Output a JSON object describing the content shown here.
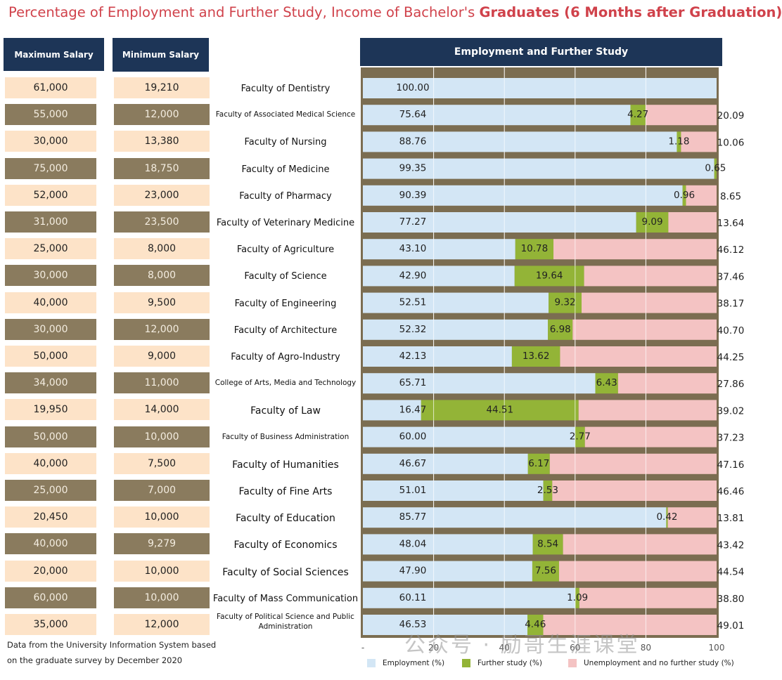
{
  "chart_data": {
    "type": "bar",
    "orientation": "horizontal",
    "stacked": true,
    "title_main": "Percentage of Employment and Further Study, Income of Bachelor's ",
    "title_bold": "Graduates (6 Months after Graduation)",
    "chart_header": "Employment and Further Study",
    "max_salary_header": "Maximum Salary",
    "min_salary_header": "Minimum Salary",
    "xlim": [
      0,
      100
    ],
    "x_ticks": [
      "-",
      "20",
      "40",
      "60",
      "80",
      "100"
    ],
    "categories": [
      "Faculty of Dentistry",
      "Faculty of Associated Medical Science",
      "Faculty of Nursing",
      "Faculty of Medicine",
      "Faculty of Pharmacy",
      "Faculty of Veterinary Medicine",
      "Faculty of Agriculture",
      "Faculty of Science",
      "Faculty of Engineering",
      "Faculty of Architecture",
      "Faculty of Agro-Industry",
      "College of Arts, Media and Technology",
      "Faculty of Law",
      "Faculty of Business Administration",
      "Faculty of Humanities",
      "Faculty of Fine Arts",
      "Faculty of Education",
      "Faculty of Economics",
      "Faculty of Social Sciences",
      "Faculty of Mass Communication",
      "Faculty of Political Science and Public Administration"
    ],
    "max_salary": [
      "61,000",
      "55,000",
      "30,000",
      "75,000",
      "52,000",
      "31,000",
      "25,000",
      "30,000",
      "40,000",
      "30,000",
      "50,000",
      "34,000",
      "19,950",
      "50,000",
      "40,000",
      "25,000",
      "20,450",
      "40,000",
      "20,000",
      "60,000",
      "35,000"
    ],
    "min_salary": [
      "19,210",
      "12,000",
      "13,380",
      "18,750",
      "23,000",
      "23,500",
      "8,000",
      "8,000",
      "9,500",
      "12,000",
      "9,000",
      "11,000",
      "14,000",
      "10,000",
      "7,500",
      "7,000",
      "10,000",
      "9,279",
      "10,000",
      "10,000",
      "12,000"
    ],
    "series": [
      {
        "name": "Employment (%)",
        "color": "#d3e6f5",
        "values": [
          100.0,
          75.64,
          88.76,
          99.35,
          90.39,
          77.27,
          43.1,
          42.9,
          52.51,
          52.32,
          42.13,
          65.71,
          16.47,
          60.0,
          46.67,
          51.01,
          85.77,
          48.04,
          47.9,
          60.11,
          46.53
        ],
        "labels": [
          "100.00",
          "75.64",
          "88.76",
          "99.35",
          "90.39",
          "77.27",
          "43.10",
          "42.90",
          "52.51",
          "52.32",
          "42.13",
          "65.71",
          "16.47",
          "60.00",
          "46.67",
          "51.01",
          "85.77",
          "48.04",
          "47.90",
          "60.11",
          "46.53"
        ]
      },
      {
        "name": "Further study (%)",
        "color": "#93b437",
        "values": [
          0,
          4.27,
          1.18,
          0.65,
          0.96,
          9.09,
          10.78,
          19.64,
          9.32,
          6.98,
          13.62,
          6.43,
          44.51,
          2.77,
          6.17,
          2.53,
          0.42,
          8.54,
          7.56,
          1.09,
          4.46
        ],
        "labels": [
          "",
          "4.27",
          "1.18",
          "0.65",
          "0.96",
          "9.09",
          "10.78",
          "19.64",
          "9.32",
          "6.98",
          "13.62",
          "6.43",
          "44.51",
          "2.77",
          "6.17",
          "2.53",
          "0.42",
          "8.54",
          "7.56",
          "1.09",
          "4.46"
        ]
      },
      {
        "name": "Unemployment and no further study (%)",
        "color": "#f4c3c3",
        "values": [
          0,
          20.09,
          10.06,
          0,
          8.65,
          13.64,
          46.12,
          37.46,
          38.17,
          40.7,
          44.25,
          27.86,
          39.02,
          37.23,
          47.16,
          46.46,
          13.81,
          43.42,
          44.54,
          38.8,
          49.01
        ],
        "labels": [
          "",
          "20.09",
          "10.06",
          "",
          "8.65",
          "13.64",
          "46.12",
          "37.46",
          "38.17",
          "40.70",
          "44.25",
          "27.86",
          "39.02",
          "37.23",
          "47.16",
          "46.46",
          "13.81",
          "43.42",
          "44.54",
          "38.80",
          "49.01"
        ]
      }
    ],
    "footnote_lines": [
      "Data from the University Information System based",
      "on the graduate survey by December 2020"
    ]
  },
  "watermark": "公众号 · 励哥生涯课堂",
  "colors": {
    "title": "#d0424b",
    "header_bg": "#1d3557",
    "cell_light": "#fde3c8",
    "cell_dark": "#8a7b5e",
    "separator": "#7b6d51"
  }
}
